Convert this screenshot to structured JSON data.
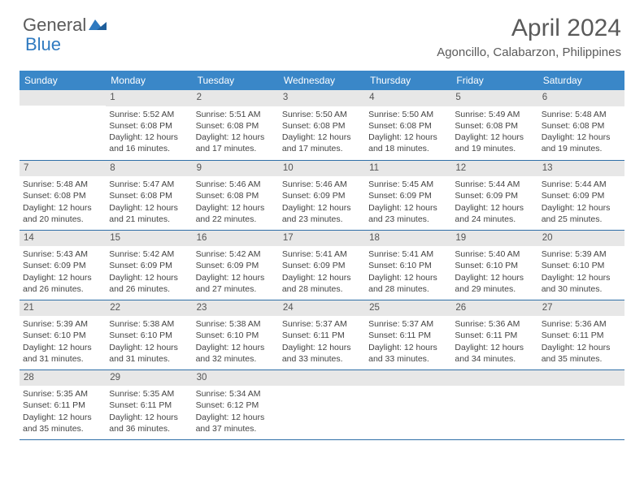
{
  "logo": {
    "word1": "General",
    "word2": "Blue"
  },
  "title": "April 2024",
  "location": "Agoncillo, Calabarzon, Philippines",
  "colors": {
    "header_bg": "#3a87c8",
    "header_text": "#ffffff",
    "daynum_bg": "#e7e7e7",
    "row_border": "#2f6fa8",
    "logo_gray": "#5a5a5a",
    "logo_blue": "#2f7ac0"
  },
  "weekdays": [
    "Sunday",
    "Monday",
    "Tuesday",
    "Wednesday",
    "Thursday",
    "Friday",
    "Saturday"
  ],
  "grid": [
    [
      {
        "n": "",
        "sunrise": "",
        "sunset": "",
        "dl1": "",
        "dl2": ""
      },
      {
        "n": "1",
        "sunrise": "Sunrise: 5:52 AM",
        "sunset": "Sunset: 6:08 PM",
        "dl1": "Daylight: 12 hours",
        "dl2": "and 16 minutes."
      },
      {
        "n": "2",
        "sunrise": "Sunrise: 5:51 AM",
        "sunset": "Sunset: 6:08 PM",
        "dl1": "Daylight: 12 hours",
        "dl2": "and 17 minutes."
      },
      {
        "n": "3",
        "sunrise": "Sunrise: 5:50 AM",
        "sunset": "Sunset: 6:08 PM",
        "dl1": "Daylight: 12 hours",
        "dl2": "and 17 minutes."
      },
      {
        "n": "4",
        "sunrise": "Sunrise: 5:50 AM",
        "sunset": "Sunset: 6:08 PM",
        "dl1": "Daylight: 12 hours",
        "dl2": "and 18 minutes."
      },
      {
        "n": "5",
        "sunrise": "Sunrise: 5:49 AM",
        "sunset": "Sunset: 6:08 PM",
        "dl1": "Daylight: 12 hours",
        "dl2": "and 19 minutes."
      },
      {
        "n": "6",
        "sunrise": "Sunrise: 5:48 AM",
        "sunset": "Sunset: 6:08 PM",
        "dl1": "Daylight: 12 hours",
        "dl2": "and 19 minutes."
      }
    ],
    [
      {
        "n": "7",
        "sunrise": "Sunrise: 5:48 AM",
        "sunset": "Sunset: 6:08 PM",
        "dl1": "Daylight: 12 hours",
        "dl2": "and 20 minutes."
      },
      {
        "n": "8",
        "sunrise": "Sunrise: 5:47 AM",
        "sunset": "Sunset: 6:08 PM",
        "dl1": "Daylight: 12 hours",
        "dl2": "and 21 minutes."
      },
      {
        "n": "9",
        "sunrise": "Sunrise: 5:46 AM",
        "sunset": "Sunset: 6:08 PM",
        "dl1": "Daylight: 12 hours",
        "dl2": "and 22 minutes."
      },
      {
        "n": "10",
        "sunrise": "Sunrise: 5:46 AM",
        "sunset": "Sunset: 6:09 PM",
        "dl1": "Daylight: 12 hours",
        "dl2": "and 23 minutes."
      },
      {
        "n": "11",
        "sunrise": "Sunrise: 5:45 AM",
        "sunset": "Sunset: 6:09 PM",
        "dl1": "Daylight: 12 hours",
        "dl2": "and 23 minutes."
      },
      {
        "n": "12",
        "sunrise": "Sunrise: 5:44 AM",
        "sunset": "Sunset: 6:09 PM",
        "dl1": "Daylight: 12 hours",
        "dl2": "and 24 minutes."
      },
      {
        "n": "13",
        "sunrise": "Sunrise: 5:44 AM",
        "sunset": "Sunset: 6:09 PM",
        "dl1": "Daylight: 12 hours",
        "dl2": "and 25 minutes."
      }
    ],
    [
      {
        "n": "14",
        "sunrise": "Sunrise: 5:43 AM",
        "sunset": "Sunset: 6:09 PM",
        "dl1": "Daylight: 12 hours",
        "dl2": "and 26 minutes."
      },
      {
        "n": "15",
        "sunrise": "Sunrise: 5:42 AM",
        "sunset": "Sunset: 6:09 PM",
        "dl1": "Daylight: 12 hours",
        "dl2": "and 26 minutes."
      },
      {
        "n": "16",
        "sunrise": "Sunrise: 5:42 AM",
        "sunset": "Sunset: 6:09 PM",
        "dl1": "Daylight: 12 hours",
        "dl2": "and 27 minutes."
      },
      {
        "n": "17",
        "sunrise": "Sunrise: 5:41 AM",
        "sunset": "Sunset: 6:09 PM",
        "dl1": "Daylight: 12 hours",
        "dl2": "and 28 minutes."
      },
      {
        "n": "18",
        "sunrise": "Sunrise: 5:41 AM",
        "sunset": "Sunset: 6:10 PM",
        "dl1": "Daylight: 12 hours",
        "dl2": "and 28 minutes."
      },
      {
        "n": "19",
        "sunrise": "Sunrise: 5:40 AM",
        "sunset": "Sunset: 6:10 PM",
        "dl1": "Daylight: 12 hours",
        "dl2": "and 29 minutes."
      },
      {
        "n": "20",
        "sunrise": "Sunrise: 5:39 AM",
        "sunset": "Sunset: 6:10 PM",
        "dl1": "Daylight: 12 hours",
        "dl2": "and 30 minutes."
      }
    ],
    [
      {
        "n": "21",
        "sunrise": "Sunrise: 5:39 AM",
        "sunset": "Sunset: 6:10 PM",
        "dl1": "Daylight: 12 hours",
        "dl2": "and 31 minutes."
      },
      {
        "n": "22",
        "sunrise": "Sunrise: 5:38 AM",
        "sunset": "Sunset: 6:10 PM",
        "dl1": "Daylight: 12 hours",
        "dl2": "and 31 minutes."
      },
      {
        "n": "23",
        "sunrise": "Sunrise: 5:38 AM",
        "sunset": "Sunset: 6:10 PM",
        "dl1": "Daylight: 12 hours",
        "dl2": "and 32 minutes."
      },
      {
        "n": "24",
        "sunrise": "Sunrise: 5:37 AM",
        "sunset": "Sunset: 6:11 PM",
        "dl1": "Daylight: 12 hours",
        "dl2": "and 33 minutes."
      },
      {
        "n": "25",
        "sunrise": "Sunrise: 5:37 AM",
        "sunset": "Sunset: 6:11 PM",
        "dl1": "Daylight: 12 hours",
        "dl2": "and 33 minutes."
      },
      {
        "n": "26",
        "sunrise": "Sunrise: 5:36 AM",
        "sunset": "Sunset: 6:11 PM",
        "dl1": "Daylight: 12 hours",
        "dl2": "and 34 minutes."
      },
      {
        "n": "27",
        "sunrise": "Sunrise: 5:36 AM",
        "sunset": "Sunset: 6:11 PM",
        "dl1": "Daylight: 12 hours",
        "dl2": "and 35 minutes."
      }
    ],
    [
      {
        "n": "28",
        "sunrise": "Sunrise: 5:35 AM",
        "sunset": "Sunset: 6:11 PM",
        "dl1": "Daylight: 12 hours",
        "dl2": "and 35 minutes."
      },
      {
        "n": "29",
        "sunrise": "Sunrise: 5:35 AM",
        "sunset": "Sunset: 6:11 PM",
        "dl1": "Daylight: 12 hours",
        "dl2": "and 36 minutes."
      },
      {
        "n": "30",
        "sunrise": "Sunrise: 5:34 AM",
        "sunset": "Sunset: 6:12 PM",
        "dl1": "Daylight: 12 hours",
        "dl2": "and 37 minutes."
      },
      {
        "n": "",
        "sunrise": "",
        "sunset": "",
        "dl1": "",
        "dl2": ""
      },
      {
        "n": "",
        "sunrise": "",
        "sunset": "",
        "dl1": "",
        "dl2": ""
      },
      {
        "n": "",
        "sunrise": "",
        "sunset": "",
        "dl1": "",
        "dl2": ""
      },
      {
        "n": "",
        "sunrise": "",
        "sunset": "",
        "dl1": "",
        "dl2": ""
      }
    ]
  ]
}
